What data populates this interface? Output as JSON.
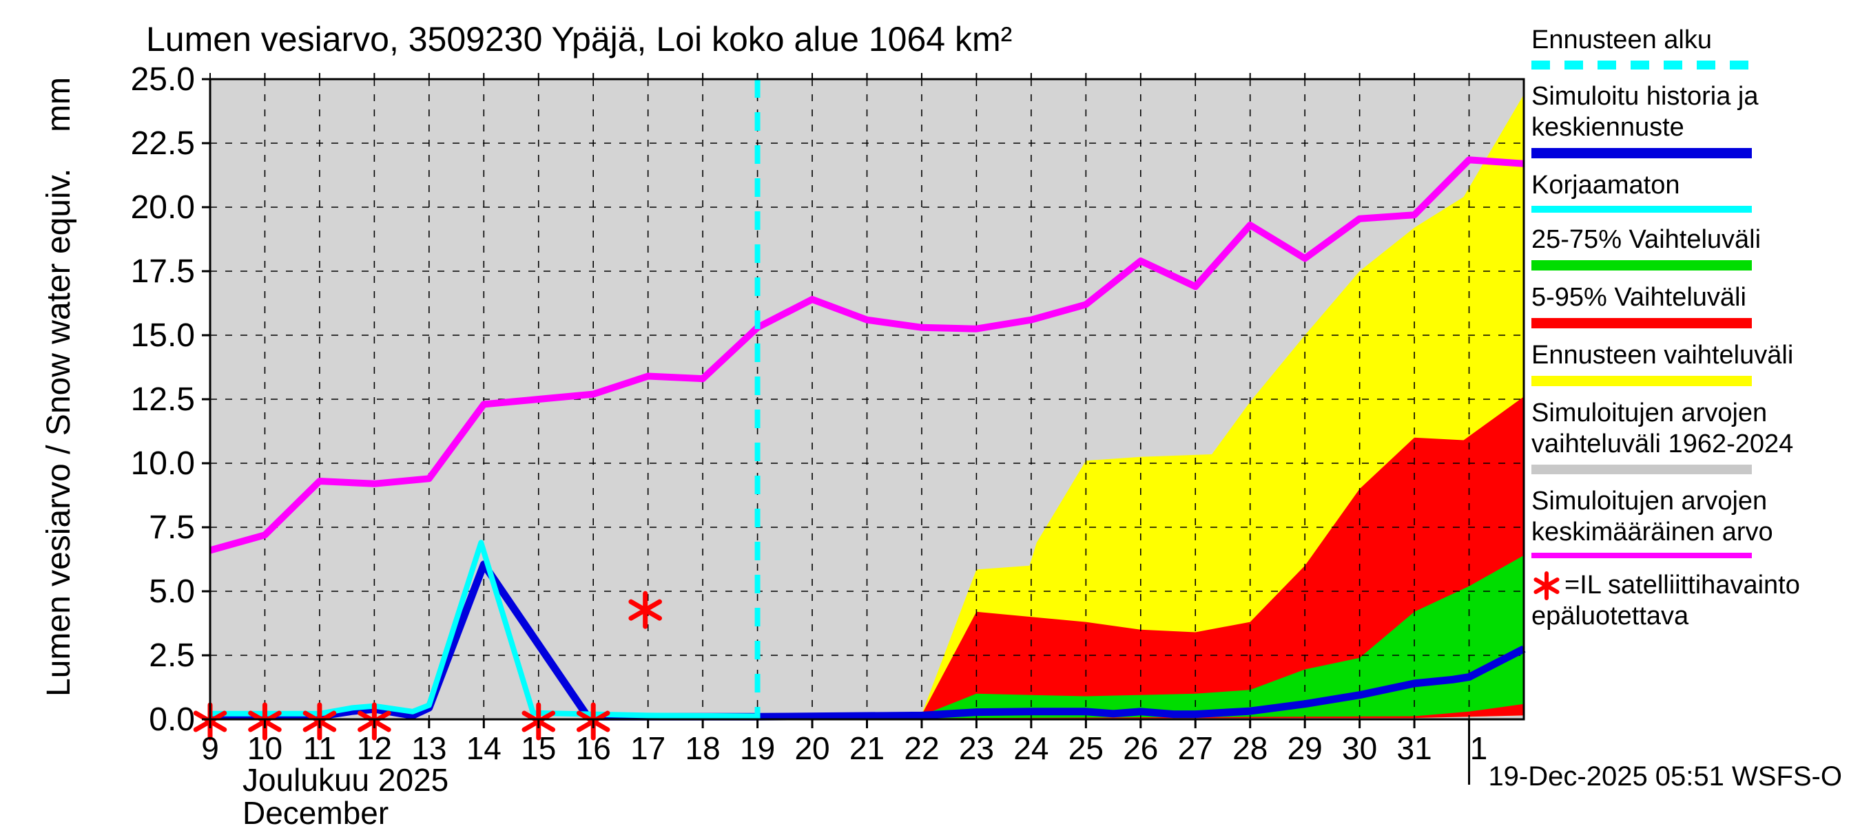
{
  "title": "Lumen vesiarvo, 3509230 Ypäjä, Loi koko alue 1064 km²",
  "y_axis_label": "Lumen vesiarvo / Snow water equiv.",
  "y_axis_unit": "mm",
  "month_label_fi": "Joulukuu  2025",
  "month_label_en": "December",
  "footer_timestamp": "19-Dec-2025 05:51 WSFS-O",
  "colors": {
    "plot_background": "#d4d4d4",
    "forecast_start_line": "#00ffff",
    "simulated_history_mean_forecast": "#0000dd",
    "uncorrected": "#00ffff",
    "band_25_75": "#00dd00",
    "band_5_95": "#ff0000",
    "forecast_range": "#ffff00",
    "simulated_range_1962_2024": "#c8c8c8",
    "simulated_mean": "#ff00ff",
    "satellite_marker": "#ff0000",
    "legend_gray_bar": "#c8c8c8"
  },
  "legend": {
    "items": [
      {
        "lines": [
          "Ennusteen alku"
        ],
        "swatch": "dashed-line",
        "color": "#00ffff",
        "height": 13
      },
      {
        "lines": [
          "Simuloitu historia ja",
          "keskiennuste"
        ],
        "swatch": "bar",
        "color": "#0000dd",
        "height": 15
      },
      {
        "lines": [
          "Korjaamaton"
        ],
        "swatch": "bar",
        "color": "#00ffff",
        "height": 10
      },
      {
        "lines": [
          "25-75% Vaihteluväli"
        ],
        "swatch": "bar",
        "color": "#00dd00",
        "height": 15
      },
      {
        "lines": [
          "5-95% Vaihteluväli"
        ],
        "swatch": "bar",
        "color": "#ff0000",
        "height": 15
      },
      {
        "lines": [
          "Ennusteen vaihteluväli"
        ],
        "swatch": "bar",
        "color": "#ffff00",
        "height": 15
      },
      {
        "lines": [
          "Simuloitujen arvojen",
          "vaihteluväli 1962-2024"
        ],
        "swatch": "bar",
        "color": "#c8c8c8",
        "height": 14
      },
      {
        "lines": [
          "Simuloitujen arvojen",
          "keskimääräinen arvo"
        ],
        "swatch": "line",
        "color": "#ff00ff",
        "height": 8
      },
      {
        "lines": [
          "=IL satelliittihavainto",
          "epäluotettava"
        ],
        "swatch": "none",
        "star_prefix": true,
        "star_color": "#ff0000"
      }
    ]
  },
  "chart_data": {
    "type": "area",
    "title": "Lumen vesiarvo, 3509230 Ypäjä, Loi koko alue 1064 km²",
    "xlabel": "Joulukuu 2025 / December",
    "ylabel": "Lumen vesiarvo / Snow water equiv. (mm)",
    "ylim": [
      0,
      25
    ],
    "y_tick_step": 2.5,
    "grid": true,
    "legend_position": "right",
    "x_axis_days": {
      "first_day": 9,
      "last_day": 33,
      "note": "days 9-31 December 2025, then 1 January"
    },
    "forecast_start_day": 19,
    "y_ticks": [
      {
        "v": 25.0,
        "label": "25.0"
      },
      {
        "v": 22.5,
        "label": "22.5"
      },
      {
        "v": 20.0,
        "label": "20.0"
      },
      {
        "v": 17.5,
        "label": "17.5"
      },
      {
        "v": 15.0,
        "label": "15.0"
      },
      {
        "v": 12.5,
        "label": "12.5"
      },
      {
        "v": 10.0,
        "label": "10.0"
      },
      {
        "v": 7.5,
        "label": "7.5"
      },
      {
        "v": 5.0,
        "label": "5.0"
      },
      {
        "v": 2.5,
        "label": "2.5"
      },
      {
        "v": 0.0,
        "label": "0.0"
      }
    ],
    "x_ticks": [
      {
        "day": 9,
        "label": "9"
      },
      {
        "day": 10,
        "label": "10"
      },
      {
        "day": 11,
        "label": "11"
      },
      {
        "day": 12,
        "label": "12"
      },
      {
        "day": 13,
        "label": "13"
      },
      {
        "day": 14,
        "label": "14"
      },
      {
        "day": 15,
        "label": "15"
      },
      {
        "day": 16,
        "label": "16"
      },
      {
        "day": 17,
        "label": "17"
      },
      {
        "day": 18,
        "label": "18"
      },
      {
        "day": 19,
        "label": "19"
      },
      {
        "day": 20,
        "label": "20"
      },
      {
        "day": 21,
        "label": "21"
      },
      {
        "day": 22,
        "label": "22"
      },
      {
        "day": 23,
        "label": "23"
      },
      {
        "day": 24,
        "label": "24"
      },
      {
        "day": 25,
        "label": "25"
      },
      {
        "day": 26,
        "label": "26"
      },
      {
        "day": 27,
        "label": "27"
      },
      {
        "day": 28,
        "label": "28"
      },
      {
        "day": 29,
        "label": "29"
      },
      {
        "day": 30,
        "label": "30"
      },
      {
        "day": 31,
        "label": "31"
      },
      {
        "day": 32,
        "label": "1",
        "long_tick": true
      }
    ],
    "series": [
      {
        "name": "Simuloitujen arvojen keskimääräinen arvo (1962-2024 mean)",
        "color": "#ff00ff",
        "width": 10,
        "points": [
          [
            9,
            6.6
          ],
          [
            10,
            7.2
          ],
          [
            11,
            9.3
          ],
          [
            12,
            9.2
          ],
          [
            13,
            9.4
          ],
          [
            14,
            12.3
          ],
          [
            15,
            12.5
          ],
          [
            16,
            12.7
          ],
          [
            17,
            13.4
          ],
          [
            18,
            13.3
          ],
          [
            19,
            15.3
          ],
          [
            20,
            16.4
          ],
          [
            21,
            15.6
          ],
          [
            22,
            15.3
          ],
          [
            23,
            15.25
          ],
          [
            24,
            15.6
          ],
          [
            25,
            16.2
          ],
          [
            26,
            17.9
          ],
          [
            27,
            16.9
          ],
          [
            28,
            19.3
          ],
          [
            29,
            18.0
          ],
          [
            30,
            19.55
          ],
          [
            31,
            19.7
          ],
          [
            32,
            21.85
          ],
          [
            33,
            21.7
          ]
        ]
      },
      {
        "name": "Simuloitu historia ja keskiennuste",
        "color": "#0000dd",
        "width": 11,
        "points": [
          [
            9,
            0.12
          ],
          [
            10,
            0.12
          ],
          [
            11,
            0.12
          ],
          [
            11.6,
            0.32
          ],
          [
            12,
            0.4
          ],
          [
            12.7,
            0.15
          ],
          [
            13,
            0.45
          ],
          [
            14,
            6.05
          ],
          [
            15.9,
            0.1
          ],
          [
            19,
            0.1
          ],
          [
            22,
            0.15
          ],
          [
            23,
            0.28
          ],
          [
            24,
            0.3
          ],
          [
            25,
            0.3
          ],
          [
            25.5,
            0.22
          ],
          [
            26,
            0.3
          ],
          [
            26.6,
            0.2
          ],
          [
            27,
            0.2
          ],
          [
            28,
            0.32
          ],
          [
            29,
            0.6
          ],
          [
            30,
            0.95
          ],
          [
            31,
            1.4
          ],
          [
            31.7,
            1.55
          ],
          [
            32,
            1.65
          ],
          [
            33,
            2.75
          ]
        ]
      },
      {
        "name": "Korjaamaton",
        "color": "#00ffff",
        "width": 8,
        "points": [
          [
            9,
            0.22
          ],
          [
            10,
            0.22
          ],
          [
            11,
            0.22
          ],
          [
            11.6,
            0.45
          ],
          [
            12,
            0.52
          ],
          [
            12.7,
            0.3
          ],
          [
            13,
            0.55
          ],
          [
            13.95,
            6.9
          ],
          [
            14.9,
            0.25
          ],
          [
            16,
            0.2
          ],
          [
            17,
            0.15
          ],
          [
            19,
            0.12
          ]
        ]
      }
    ],
    "bands": [
      {
        "name": "Ennusteen vaihteluväli",
        "color": "#ffff00",
        "top": [
          [
            22,
            0.2
          ],
          [
            23,
            5.85
          ],
          [
            23.97,
            6.0
          ],
          [
            24.1,
            6.9
          ],
          [
            25,
            10.1
          ],
          [
            26,
            10.25
          ],
          [
            27.3,
            10.35
          ],
          [
            28,
            12.4
          ],
          [
            29,
            15.0
          ],
          [
            30,
            17.5
          ],
          [
            31,
            19.2
          ],
          [
            31.9,
            20.4
          ],
          [
            33,
            24.4
          ]
        ],
        "bottom": [
          [
            22,
            0.05
          ],
          [
            31,
            0.05
          ],
          [
            32,
            0.1
          ],
          [
            33,
            0.15
          ]
        ]
      },
      {
        "name": "5-95% Vaihteluväli",
        "color": "#ff0000",
        "top": [
          [
            22,
            0.18
          ],
          [
            23,
            4.2
          ],
          [
            24,
            4.0
          ],
          [
            25,
            3.8
          ],
          [
            26,
            3.5
          ],
          [
            27,
            3.4
          ],
          [
            28,
            3.8
          ],
          [
            29,
            6.0
          ],
          [
            30,
            9.0
          ],
          [
            31,
            11.0
          ],
          [
            31.9,
            10.9
          ],
          [
            33,
            12.6
          ]
        ],
        "bottom": [
          [
            22,
            0.04
          ],
          [
            31,
            0.05
          ],
          [
            32,
            0.1
          ],
          [
            33,
            0.15
          ]
        ]
      },
      {
        "name": "25-75% Vaihteluväli",
        "color": "#00dd00",
        "top": [
          [
            22,
            0.15
          ],
          [
            23,
            1.0
          ],
          [
            24,
            0.95
          ],
          [
            25,
            0.9
          ],
          [
            26,
            0.95
          ],
          [
            27,
            1.0
          ],
          [
            28,
            1.15
          ],
          [
            29,
            1.95
          ],
          [
            30,
            2.4
          ],
          [
            31,
            4.2
          ],
          [
            32,
            5.2
          ],
          [
            33,
            6.4
          ]
        ],
        "bottom": [
          [
            22,
            0.04
          ],
          [
            31,
            0.12
          ],
          [
            32,
            0.3
          ],
          [
            33,
            0.6
          ]
        ]
      }
    ],
    "satellite_markers": {
      "name": "IL satelliittihavainto epäluotettava",
      "color": "#ff0000",
      "points": [
        [
          9,
          0
        ],
        [
          10,
          0
        ],
        [
          11,
          0
        ],
        [
          12,
          0
        ],
        [
          15,
          0
        ],
        [
          16,
          0
        ],
        [
          16.95,
          4.35
        ]
      ]
    }
  }
}
